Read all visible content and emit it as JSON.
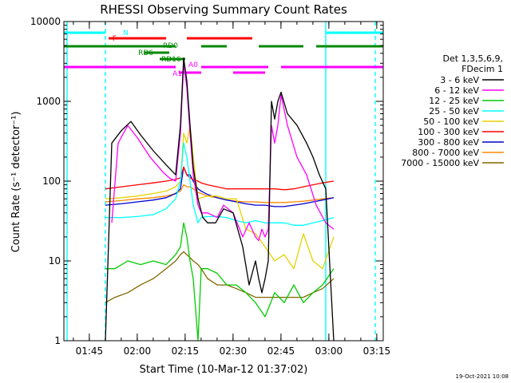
{
  "chart_data": {
    "type": "line",
    "title": "RHESSI Observing Summary Count Rates",
    "xlabel": "Start Time (10-Mar-12 01:37:02)",
    "ylabel": "Count Rate (s⁻¹ detector⁻¹)",
    "y_scale": "log",
    "ylim": [
      1,
      10000
    ],
    "xlim_minutes_after_start": [
      0,
      100
    ],
    "x_tick_labels": [
      "01:45",
      "02:00",
      "02:15",
      "02:30",
      "02:45",
      "03:00",
      "03:15"
    ],
    "x_tick_minutes": [
      7.97,
      22.97,
      37.97,
      52.97,
      67.97,
      82.97,
      97.97
    ],
    "y_tick_labels": [
      "1",
      "10",
      "100",
      "1000",
      "10000"
    ],
    "legend_header": [
      "Det 1,3,5,6,9,",
      "FDecim 1"
    ],
    "timestamp": "19-Oct-2021 10:08",
    "grid": false,
    "legend_placement": "right",
    "series": [
      {
        "name": "3 - 6 keV",
        "color": "#000000",
        "x": [
          13,
          15,
          18,
          21,
          24,
          28,
          32,
          35,
          36.5,
          37.5,
          38.5,
          39.5,
          40.5,
          42,
          43.5,
          45,
          47.5,
          50,
          53,
          56,
          58,
          60,
          61,
          62,
          63,
          64,
          65,
          66,
          67,
          68,
          70,
          73,
          76,
          78,
          80,
          82,
          84.5
        ],
        "y": [
          1,
          300,
          430,
          560,
          380,
          240,
          160,
          120,
          500,
          3500,
          1800,
          500,
          150,
          60,
          35,
          30,
          30,
          45,
          40,
          15,
          5,
          10,
          6,
          4,
          6,
          10,
          1000,
          600,
          1000,
          1300,
          700,
          500,
          300,
          200,
          120,
          80,
          1
        ]
      },
      {
        "name": "6 - 12 keV",
        "color": "#ff00ff",
        "x": [
          15,
          17,
          20,
          23,
          27,
          31,
          33,
          35,
          36.5,
          37.5,
          38.5,
          39.5,
          40.5,
          42,
          43,
          45,
          48,
          50,
          53,
          56,
          58,
          60,
          61,
          62,
          63,
          64,
          65,
          66,
          67,
          68,
          70,
          73,
          76,
          79,
          82,
          84.5
        ],
        "y": [
          30,
          300,
          500,
          350,
          200,
          130,
          110,
          100,
          400,
          3000,
          1500,
          400,
          120,
          50,
          40,
          40,
          35,
          50,
          40,
          20,
          30,
          20,
          18,
          25,
          20,
          25,
          500,
          300,
          500,
          1200,
          500,
          200,
          120,
          50,
          30,
          25
        ]
      },
      {
        "name": "12 - 25 keV",
        "color": "#00cc00",
        "x": [
          13,
          16,
          20,
          24,
          28,
          32,
          35,
          36.5,
          37.5,
          38.5,
          39.5,
          40.5,
          42,
          43,
          45,
          48,
          51,
          54,
          57,
          60,
          63,
          66,
          69,
          72,
          75,
          78,
          81,
          84.5
        ],
        "y": [
          8,
          8,
          10,
          9,
          10,
          9,
          12,
          15,
          30,
          20,
          10,
          6,
          1,
          8,
          8,
          7,
          5,
          5,
          4,
          3,
          2,
          4,
          3,
          5,
          3,
          4,
          5,
          8
        ]
      },
      {
        "name": "25 - 50 keV",
        "color": "#00ffff",
        "x": [
          13,
          18,
          23,
          28,
          32,
          35,
          36.5,
          37.5,
          38.5,
          39.5,
          40.5,
          42,
          43,
          45,
          48,
          51,
          54,
          57,
          60,
          63,
          66,
          69,
          72,
          75,
          78,
          81,
          84.5
        ],
        "y": [
          35,
          35,
          36,
          38,
          45,
          60,
          100,
          300,
          200,
          100,
          50,
          30,
          35,
          36,
          36,
          35,
          32,
          30,
          32,
          30,
          30,
          30,
          28,
          28,
          30,
          32,
          35
        ]
      },
      {
        "name": "50 - 100 keV",
        "color": "#e6d200",
        "x": [
          13,
          18,
          23,
          28,
          32,
          35,
          36.5,
          37.5,
          38.5,
          39.5,
          40.5,
          42,
          43,
          45,
          48,
          51,
          54,
          57,
          60,
          63,
          66,
          69,
          72,
          75,
          78,
          81,
          84.5
        ],
        "y": [
          60,
          62,
          65,
          70,
          75,
          85,
          100,
          400,
          300,
          500,
          200,
          60,
          62,
          65,
          65,
          60,
          60,
          25,
          22,
          15,
          10,
          12,
          8,
          22,
          10,
          8,
          20
        ]
      },
      {
        "name": "100 - 300 keV",
        "color": "#ff0000",
        "x": [
          13,
          18,
          23,
          28,
          32,
          35,
          36.5,
          37.5,
          38.5,
          39.5,
          40.5,
          42,
          43,
          45,
          48,
          51,
          54,
          57,
          60,
          63,
          66,
          69,
          72,
          75,
          78,
          81,
          84.5
        ],
        "y": [
          80,
          85,
          90,
          95,
          100,
          105,
          110,
          150,
          120,
          110,
          105,
          100,
          95,
          90,
          85,
          80,
          80,
          80,
          80,
          80,
          80,
          78,
          80,
          85,
          90,
          95,
          100
        ]
      },
      {
        "name": "300 - 800 keV",
        "color": "#0000cc",
        "x": [
          13,
          18,
          23,
          28,
          32,
          35,
          36.5,
          37.5,
          38.5,
          39.5,
          40.5,
          42,
          43,
          45,
          48,
          51,
          54,
          57,
          60,
          63,
          66,
          69,
          72,
          75,
          78,
          81,
          84.5
        ],
        "y": [
          50,
          52,
          55,
          58,
          62,
          70,
          80,
          150,
          120,
          120,
          100,
          80,
          75,
          68,
          62,
          58,
          55,
          52,
          50,
          50,
          48,
          48,
          50,
          52,
          55,
          58,
          62
        ]
      },
      {
        "name": "800 - 7000 keV",
        "color": "#ff8800",
        "x": [
          13,
          18,
          23,
          28,
          32,
          35,
          36.5,
          37.5,
          38.5,
          39.5,
          40.5,
          42,
          43,
          45,
          48,
          51,
          54,
          57,
          60,
          63,
          66,
          69,
          72,
          75,
          78,
          81,
          84.5
        ],
        "y": [
          55,
          57,
          60,
          62,
          65,
          70,
          75,
          90,
          85,
          85,
          80,
          72,
          70,
          65,
          62,
          58,
          56,
          55,
          55,
          54,
          54,
          54,
          55,
          56,
          58,
          60,
          62
        ]
      },
      {
        "name": "7000 - 15000 keV",
        "color": "#806600",
        "x": [
          13,
          16,
          20,
          24,
          28,
          32,
          35,
          36.5,
          37.5,
          38.5,
          39.5,
          40.5,
          42,
          43,
          45,
          48,
          51,
          54,
          57,
          60,
          63,
          66,
          69,
          72,
          75,
          78,
          81,
          84.5
        ],
        "y": [
          3,
          3.5,
          4,
          5,
          6,
          8,
          10,
          12,
          13,
          12,
          11,
          10,
          9,
          8,
          6,
          5,
          5,
          4.5,
          4,
          3.5,
          3.5,
          3.5,
          3.5,
          3.5,
          3.5,
          4,
          4.5,
          6
        ]
      }
    ],
    "state_bars": [
      {
        "label": "N",
        "color": "#00ffff",
        "segments": [
          [
            0,
            13
          ],
          [
            82,
            100
          ]
        ]
      },
      {
        "label": "F",
        "color": "#ff0000",
        "segments": [
          [
            14,
            32
          ],
          [
            38.5,
            59
          ]
        ]
      },
      {
        "label": "RD0",
        "color": "#008800",
        "segments": [
          [
            0,
            26
          ],
          [
            26,
            35
          ],
          [
            43,
            51
          ],
          [
            61,
            75
          ],
          [
            79,
            100
          ]
        ]
      },
      {
        "label": "RD6",
        "color": "#008800",
        "segments": [
          [
            25,
            33
          ]
        ]
      },
      {
        "label": "RD16",
        "color": "#008800",
        "segments": [
          [
            30,
            38
          ]
        ]
      },
      {
        "label": "A1",
        "color": "#ff00ff",
        "segments": [
          [
            0,
            35
          ],
          [
            43,
            64
          ],
          [
            68,
            100
          ]
        ]
      },
      {
        "label": "A0",
        "color": "#ff00ff",
        "segments": [
          [
            36,
            43
          ],
          [
            53,
            63
          ]
        ]
      }
    ],
    "vertical_markers": [
      {
        "color": "#00ffff",
        "x": 1,
        "style": "solid"
      },
      {
        "color": "#00ffff",
        "x": 13,
        "style": "dashed"
      },
      {
        "color": "#00ffff",
        "x": 82,
        "style": "solid"
      },
      {
        "color": "#00ffff",
        "x": 97.5,
        "style": "dashed"
      }
    ]
  }
}
